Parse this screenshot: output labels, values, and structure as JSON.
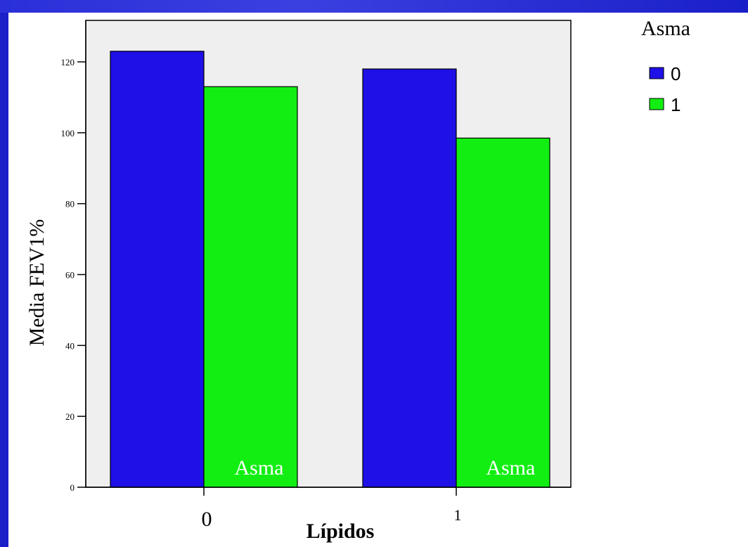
{
  "chart_data": {
    "type": "bar",
    "categories": [
      "0",
      "1"
    ],
    "series": [
      {
        "name": "0",
        "values": [
          123,
          118
        ],
        "color": "#1e10e6"
      },
      {
        "name": "1",
        "values": [
          113,
          98.5
        ],
        "color": "#12ee12"
      }
    ],
    "ylim": [
      0,
      120
    ],
    "yticks": [
      "0",
      "20",
      "40",
      "60",
      "80",
      "100",
      "120"
    ],
    "ylabel": "Media FEV1%",
    "xlabel": "Lípidos",
    "legend_title": "Asma",
    "legend_position": "top-right",
    "bar_annotations": [
      "Asma",
      "Asma"
    ],
    "plot_background": "#efefef",
    "grid": false
  }
}
